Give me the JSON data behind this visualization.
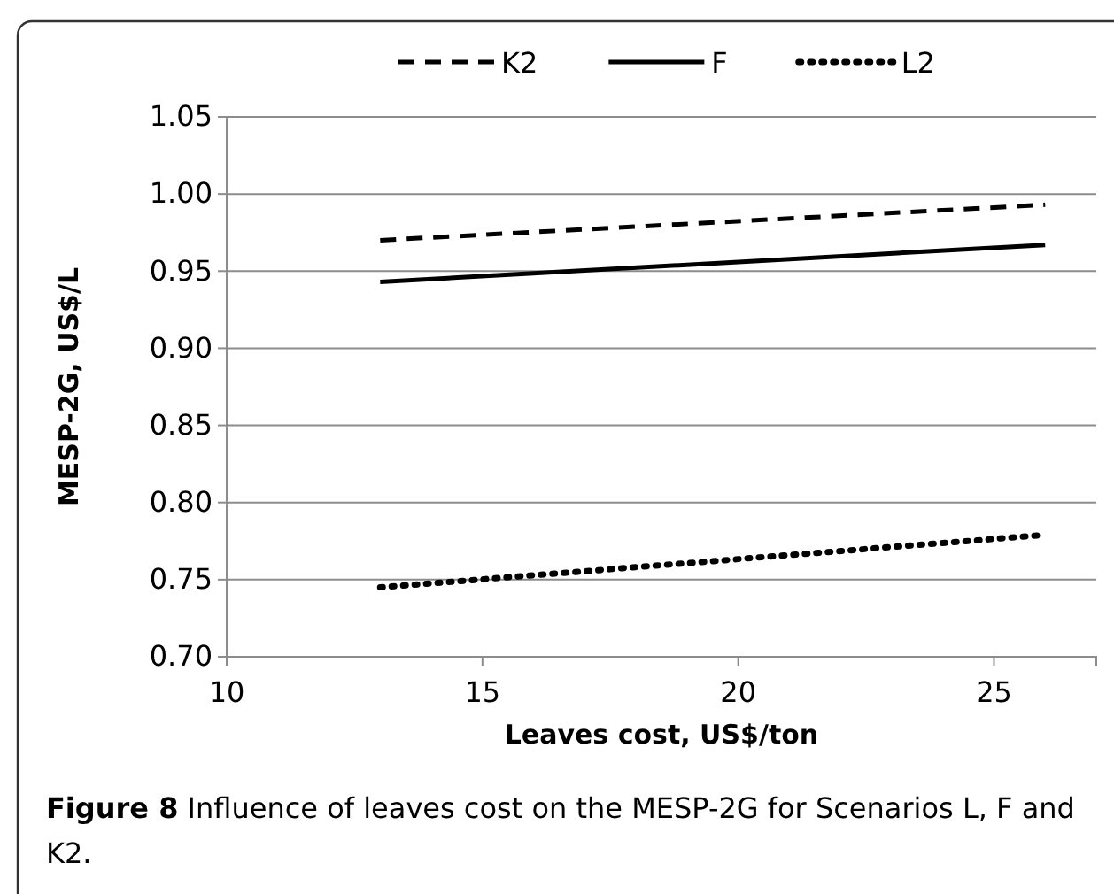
{
  "chart_data": {
    "type": "line",
    "xlabel": "Leaves cost, US$/ton",
    "ylabel": "MESP-2G,  US$/L",
    "annotations": [
      "Figure 8 Influence of leaves cost on the MESP-2G for Scenarios L, F and K2."
    ],
    "x": [
      13,
      26
    ],
    "series": [
      {
        "name": "K2",
        "color": "#000000",
        "values": [
          0.97,
          0.993
        ],
        "line_style": "dashed"
      },
      {
        "name": "F",
        "color": "#000000",
        "values": [
          0.943,
          0.967
        ],
        "line_style": "solid"
      },
      {
        "name": "L2",
        "color": "#000000",
        "values": [
          0.745,
          0.779
        ],
        "line_style": "dotted"
      }
    ],
    "xlim": [
      10,
      27
    ],
    "xticks": [
      10,
      15,
      20,
      25
    ],
    "ylim": [
      0.7,
      1.05
    ],
    "yticks": [
      {
        "value": 0.7,
        "label": "0.70"
      },
      {
        "value": 0.75,
        "label": "0.75"
      },
      {
        "value": 0.8,
        "label": "0.80"
      },
      {
        "value": 0.85,
        "label": "0.85"
      },
      {
        "value": 0.9,
        "label": "0.90"
      },
      {
        "value": 0.95,
        "label": "0.95"
      },
      {
        "value": 1.0,
        "label": "1.00"
      },
      {
        "value": 1.05,
        "label": "1.05"
      }
    ],
    "grid": "y",
    "legend": "top",
    "marker": "none"
  }
}
